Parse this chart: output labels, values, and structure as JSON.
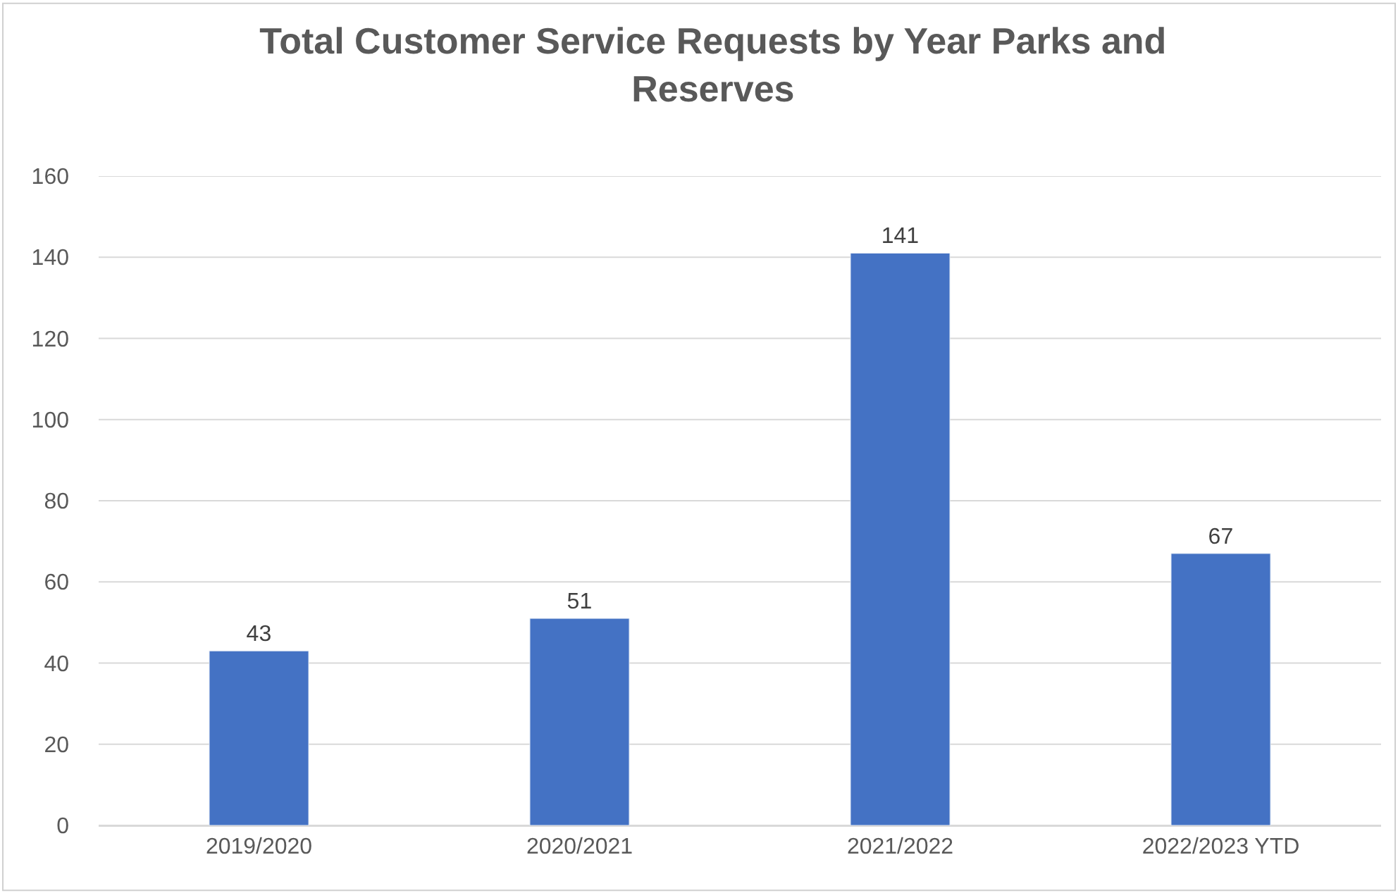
{
  "chart_data": {
    "type": "bar",
    "title": "Total Customer Service Requests by Year Parks and Reserves",
    "categories": [
      "2019/2020",
      "2020/2021",
      "2021/2022",
      "2022/2023 YTD"
    ],
    "values": [
      43,
      51,
      141,
      67
    ],
    "color": "#4472c4",
    "ylim": [
      0,
      160
    ],
    "yticks": [
      0,
      20,
      40,
      60,
      80,
      100,
      120,
      140,
      160
    ],
    "grid": "y",
    "data_labels": true,
    "legend": false
  }
}
